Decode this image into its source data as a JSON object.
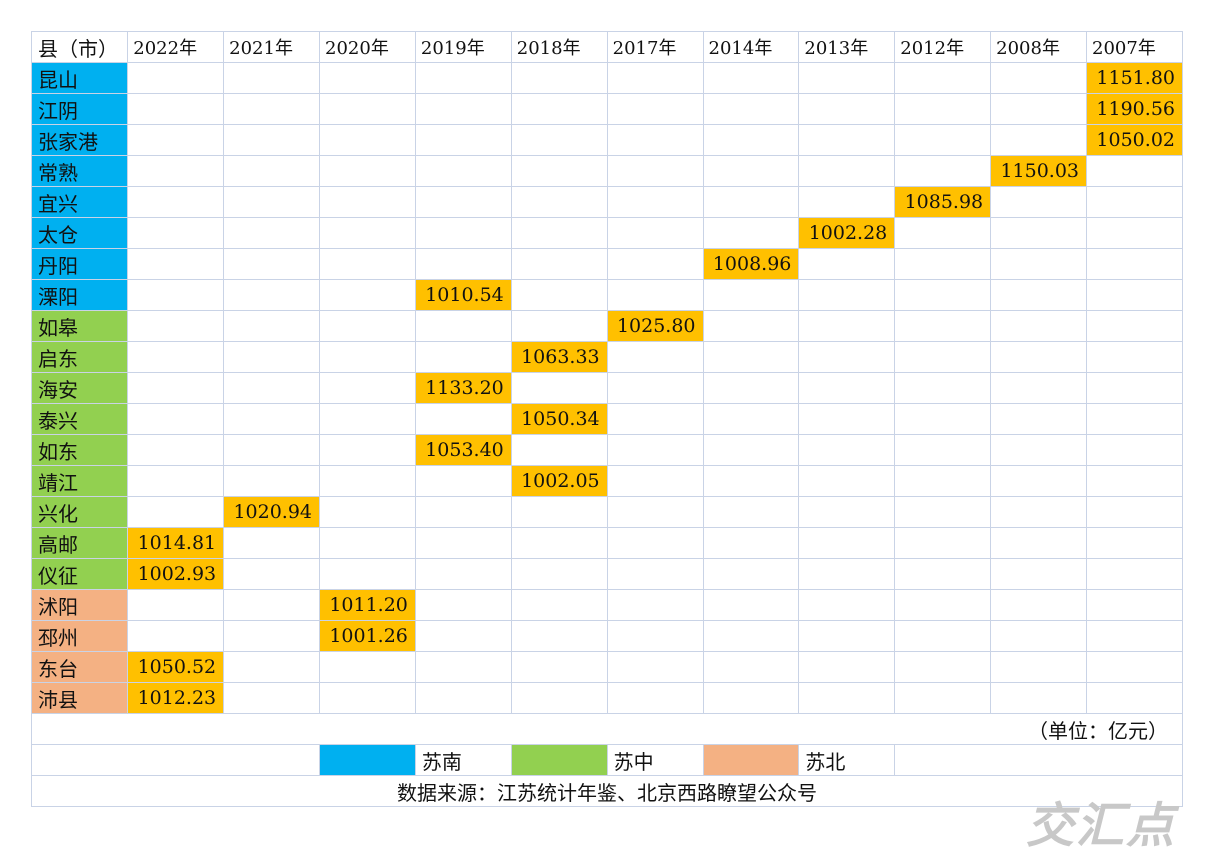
{
  "header": {
    "county_label": "县（市）",
    "years": [
      "2022年",
      "2021年",
      "2020年",
      "2019年",
      "2018年",
      "2017年",
      "2014年",
      "2013年",
      "2012年",
      "2008年",
      "2007年"
    ]
  },
  "region_colors": {
    "south": "#00b0f0",
    "central": "#92d050",
    "north": "#f4b183",
    "value": "#ffc000"
  },
  "rows": [
    {
      "name": "昆山",
      "region": "south",
      "col": 10,
      "value": "1151.80"
    },
    {
      "name": "江阴",
      "region": "south",
      "col": 10,
      "value": "1190.56"
    },
    {
      "name": "张家港",
      "region": "south",
      "col": 10,
      "value": "1050.02"
    },
    {
      "name": "常熟",
      "region": "south",
      "col": 9,
      "value": "1150.03"
    },
    {
      "name": "宜兴",
      "region": "south",
      "col": 8,
      "value": "1085.98"
    },
    {
      "name": "太仓",
      "region": "south",
      "col": 7,
      "value": "1002.28"
    },
    {
      "name": "丹阳",
      "region": "south",
      "col": 6,
      "value": "1008.96"
    },
    {
      "name": "溧阳",
      "region": "south",
      "col": 3,
      "value": "1010.54"
    },
    {
      "name": "如皋",
      "region": "central",
      "col": 5,
      "value": "1025.80"
    },
    {
      "name": "启东",
      "region": "central",
      "col": 4,
      "value": "1063.33"
    },
    {
      "name": "海安",
      "region": "central",
      "col": 3,
      "value": "1133.20"
    },
    {
      "name": "泰兴",
      "region": "central",
      "col": 4,
      "value": "1050.34"
    },
    {
      "name": "如东",
      "region": "central",
      "col": 3,
      "value": "1053.40"
    },
    {
      "name": "靖江",
      "region": "central",
      "col": 4,
      "value": "1002.05"
    },
    {
      "name": "兴化",
      "region": "central",
      "col": 1,
      "value": "1020.94"
    },
    {
      "name": "高邮",
      "region": "central",
      "col": 0,
      "value": "1014.81"
    },
    {
      "name": "仪征",
      "region": "central",
      "col": 0,
      "value": "1002.93"
    },
    {
      "name": "沭阳",
      "region": "north",
      "col": 2,
      "value": "1011.20"
    },
    {
      "name": "邳州",
      "region": "north",
      "col": 2,
      "value": "1001.26"
    },
    {
      "name": "东台",
      "region": "north",
      "col": 0,
      "value": "1050.52"
    },
    {
      "name": "沛县",
      "region": "north",
      "col": 0,
      "value": "1012.23"
    }
  ],
  "unit_note": "（单位：亿元）",
  "legend": [
    {
      "region": "south",
      "label": "苏南"
    },
    {
      "region": "central",
      "label": "苏中"
    },
    {
      "region": "north",
      "label": "苏北"
    }
  ],
  "source": "数据来源：江苏统计年鉴、北京西路瞭望公众号",
  "watermark": "交汇点"
}
